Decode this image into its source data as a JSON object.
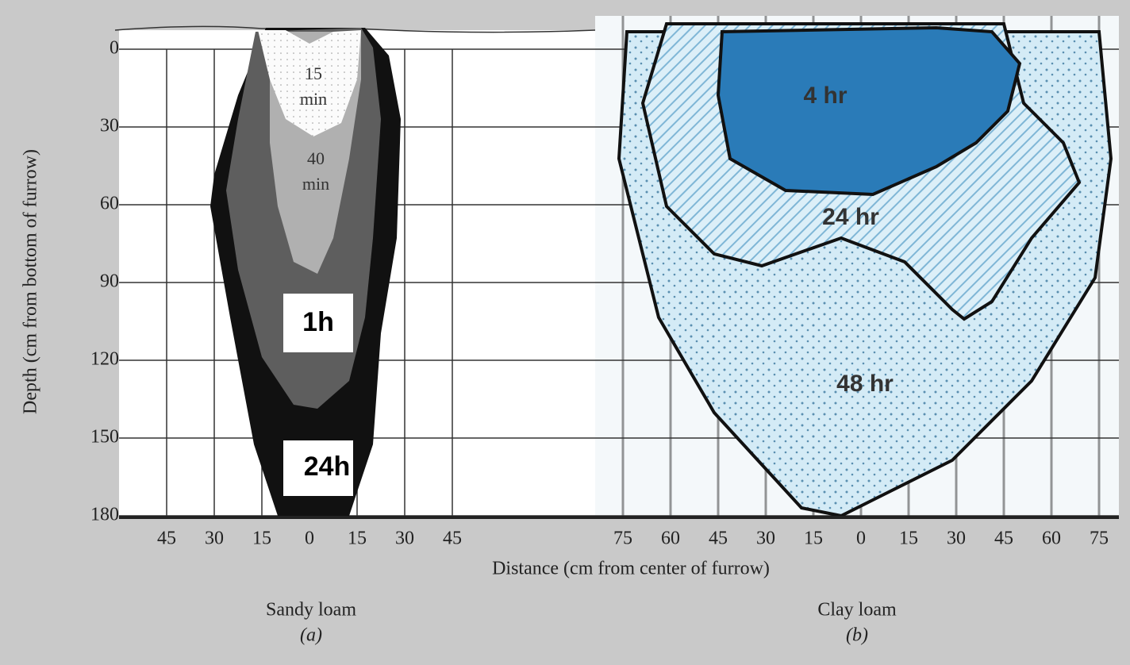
{
  "y_axis": {
    "label": "Depth (cm from bottom of furrow)",
    "ticks": [
      "0",
      "30",
      "60",
      "90",
      "120",
      "150",
      "180"
    ]
  },
  "x_axis": {
    "label": "Distance (cm from center of furrow)"
  },
  "panels": [
    {
      "x_ticks": [
        "45",
        "30",
        "15",
        "0",
        "15",
        "30",
        "45"
      ],
      "caption": "Sandy loam",
      "sub": "(a)",
      "zones": [
        {
          "lines": [
            "15",
            "min"
          ]
        },
        {
          "lines": [
            "40",
            "min"
          ]
        },
        {
          "lines": [
            "1h"
          ]
        },
        {
          "lines": [
            "24h"
          ]
        }
      ]
    },
    {
      "x_ticks": [
        "75",
        "60",
        "45",
        "30",
        "15",
        "0",
        "15",
        "30",
        "45",
        "60",
        "75"
      ],
      "caption": "Clay loam",
      "sub": "(b)",
      "zones": [
        {
          "lines": [
            "4 hr"
          ]
        },
        {
          "lines": [
            "24 hr"
          ]
        },
        {
          "lines": [
            "48 hr"
          ]
        }
      ]
    }
  ]
}
